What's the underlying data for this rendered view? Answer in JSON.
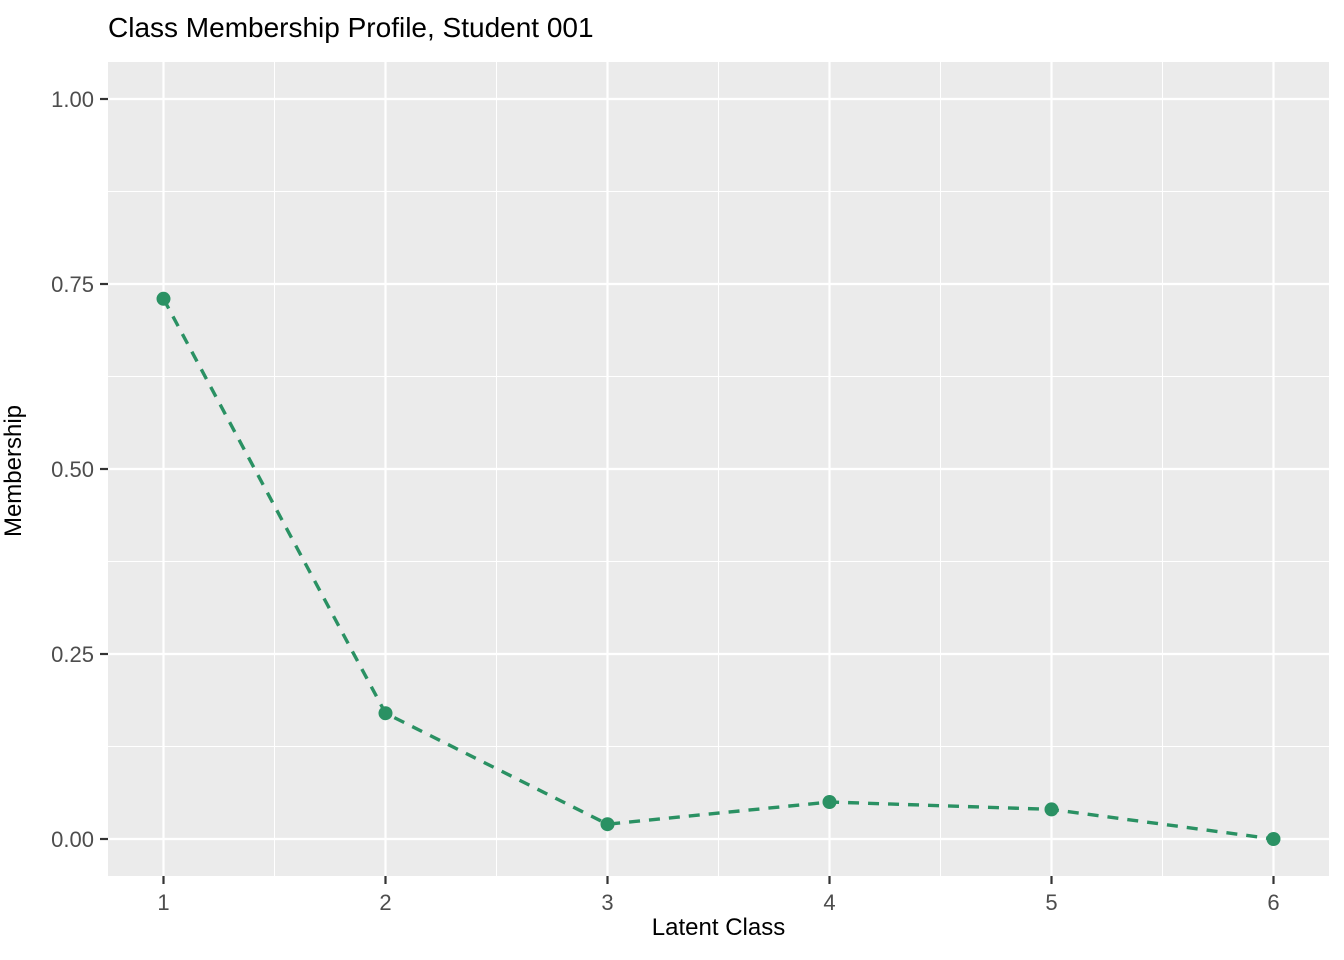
{
  "chart_data": {
    "type": "line",
    "title": "Class Membership Profile, Student 001",
    "xlabel": "Latent Class",
    "ylabel": "Membership",
    "x": [
      1,
      2,
      3,
      4,
      5,
      6
    ],
    "series": [
      {
        "name": "membership",
        "values": [
          0.73,
          0.17,
          0.02,
          0.05,
          0.04,
          0.0
        ],
        "line_style": "dashed",
        "marker": "circle"
      }
    ],
    "x_tick_labels": [
      "1",
      "2",
      "3",
      "4",
      "5",
      "6"
    ],
    "x_tick_values": [
      1,
      2,
      3,
      4,
      5,
      6
    ],
    "y_tick_labels": [
      "0.00",
      "0.25",
      "0.50",
      "0.75",
      "1.00"
    ],
    "y_tick_values": [
      0,
      0.25,
      0.5,
      0.75,
      1.0
    ],
    "x_minor_values": [
      1.5,
      2.5,
      3.5,
      4.5,
      5.5
    ],
    "y_minor_values": [
      0.125,
      0.375,
      0.625,
      0.875
    ],
    "xlim": [
      0.75,
      6.25
    ],
    "ylim": [
      -0.05,
      1.05
    ],
    "grid": true,
    "legend_position": "none",
    "colors": {
      "series": "#2a9163",
      "panel_background": "#ebebeb",
      "grid": "#ffffff",
      "tick_mark": "#333333",
      "tick_label": "#4d4d4d",
      "title": "#000000"
    }
  }
}
